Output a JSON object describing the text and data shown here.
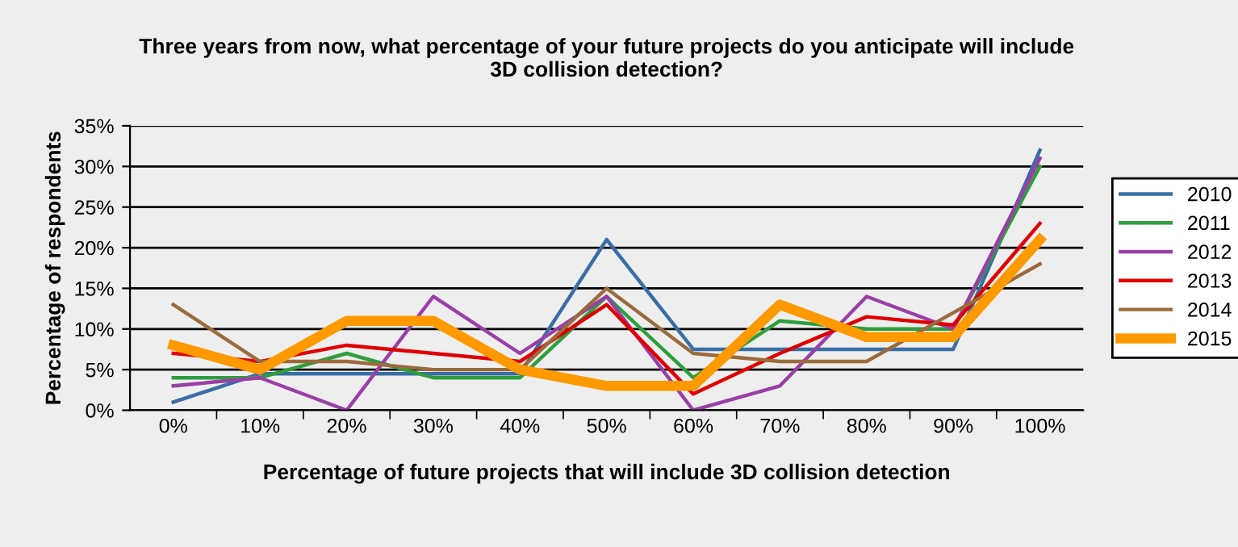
{
  "chart_data": {
    "type": "line",
    "title": "Three years from now, what percentage of your future projects do you anticipate will include\n3D collision detection?",
    "xlabel": "Percentage of future projects that will include 3D collision detection",
    "ylabel": "Percentage of respondents",
    "categories": [
      "0%",
      "10%",
      "20%",
      "30%",
      "40%",
      "50%",
      "60%",
      "70%",
      "80%",
      "90%",
      "100%"
    ],
    "series": [
      {
        "name": "2010",
        "color": "#3a6ea5",
        "values": [
          1,
          4.5,
          4.5,
          4.5,
          4.5,
          21,
          7.5,
          7.5,
          7.5,
          7.5,
          32
        ]
      },
      {
        "name": "2011",
        "color": "#2e9e3e",
        "values": [
          4,
          4,
          7,
          4,
          4,
          14,
          4,
          11,
          10,
          10,
          30
        ]
      },
      {
        "name": "2012",
        "color": "#9b3fa8",
        "values": [
          3,
          4,
          0,
          14,
          7,
          14,
          0,
          3,
          14,
          10,
          31
        ]
      },
      {
        "name": "2013",
        "color": "#e00000",
        "values": [
          7,
          6,
          8,
          7,
          6,
          13,
          2,
          7,
          11.5,
          10.5,
          23
        ]
      },
      {
        "name": "2014",
        "color": "#9b6b3c",
        "values": [
          13,
          6,
          6,
          5,
          5,
          15,
          7,
          6,
          6,
          12,
          18
        ]
      },
      {
        "name": "2015",
        "color": "#ff9900",
        "values": [
          8,
          5,
          11,
          11,
          5,
          3,
          3,
          13,
          9,
          9,
          21
        ]
      }
    ],
    "ylim": [
      0,
      35
    ],
    "yticks": [
      {
        "value": 0,
        "label": "0%"
      },
      {
        "value": 5,
        "label": "5%"
      },
      {
        "value": 10,
        "label": "10%"
      },
      {
        "value": 15,
        "label": "15%"
      },
      {
        "value": 20,
        "label": "20%"
      },
      {
        "value": 25,
        "label": "25%"
      },
      {
        "value": 30,
        "label": "30%"
      },
      {
        "value": 35,
        "label": "35%"
      }
    ],
    "grid": "y",
    "legend": "right",
    "marker": "none",
    "line_style": "solid"
  }
}
